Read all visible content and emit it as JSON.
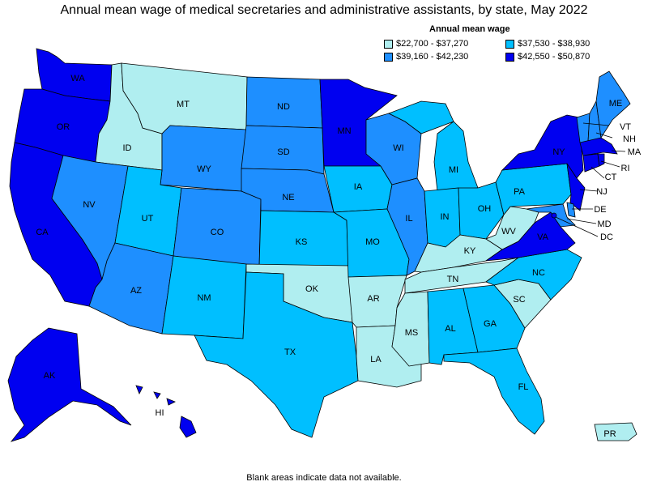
{
  "title": "Annual mean wage of medical secretaries and administrative assistants, by state, May 2022",
  "note": "Blank areas indicate data not available.",
  "legend": {
    "title": "Annual mean wage",
    "items": [
      {
        "range": "$22,700 - $37,270",
        "color": "#b0eef0"
      },
      {
        "range": "$37,530 - $38,930",
        "color": "#00bfff"
      },
      {
        "range": "$39,160 - $42,230",
        "color": "#1e8fff"
      },
      {
        "range": "$42,550 - $50,870",
        "color": "#0000f0"
      }
    ]
  },
  "colors": {
    "c1": "#b0eef0",
    "c2": "#00bfff",
    "c3": "#1e8fff",
    "c4": "#0000f0"
  },
  "states": [
    {
      "abbr": "WA",
      "cls": "c4"
    },
    {
      "abbr": "OR",
      "cls": "c4"
    },
    {
      "abbr": "CA",
      "cls": "c4"
    },
    {
      "abbr": "ID",
      "cls": "c1"
    },
    {
      "abbr": "NV",
      "cls": "c3"
    },
    {
      "abbr": "MT",
      "cls": "c1"
    },
    {
      "abbr": "WY",
      "cls": "c3"
    },
    {
      "abbr": "UT",
      "cls": "c2"
    },
    {
      "abbr": "AZ",
      "cls": "c3"
    },
    {
      "abbr": "CO",
      "cls": "c3"
    },
    {
      "abbr": "NM",
      "cls": "c2"
    },
    {
      "abbr": "ND",
      "cls": "c3"
    },
    {
      "abbr": "SD",
      "cls": "c3"
    },
    {
      "abbr": "NE",
      "cls": "c3"
    },
    {
      "abbr": "KS",
      "cls": "c2"
    },
    {
      "abbr": "OK",
      "cls": "c1"
    },
    {
      "abbr": "TX",
      "cls": "c2"
    },
    {
      "abbr": "MN",
      "cls": "c4"
    },
    {
      "abbr": "IA",
      "cls": "c2"
    },
    {
      "abbr": "MO",
      "cls": "c2"
    },
    {
      "abbr": "AR",
      "cls": "c1"
    },
    {
      "abbr": "LA",
      "cls": "c1"
    },
    {
      "abbr": "WI",
      "cls": "c3"
    },
    {
      "abbr": "IL",
      "cls": "c3"
    },
    {
      "abbr": "MI",
      "cls": "c2"
    },
    {
      "abbr": "IN",
      "cls": "c2"
    },
    {
      "abbr": "OH",
      "cls": "c2"
    },
    {
      "abbr": "KY",
      "cls": "c1"
    },
    {
      "abbr": "TN",
      "cls": "c1"
    },
    {
      "abbr": "MS",
      "cls": "c1"
    },
    {
      "abbr": "AL",
      "cls": "c2"
    },
    {
      "abbr": "GA",
      "cls": "c2"
    },
    {
      "abbr": "FL",
      "cls": "c2"
    },
    {
      "abbr": "SC",
      "cls": "c1"
    },
    {
      "abbr": "NC",
      "cls": "c2"
    },
    {
      "abbr": "VA",
      "cls": "c4"
    },
    {
      "abbr": "WV",
      "cls": "c1"
    },
    {
      "abbr": "PA",
      "cls": "c2"
    },
    {
      "abbr": "NY",
      "cls": "c4"
    },
    {
      "abbr": "VT",
      "cls": "c3"
    },
    {
      "abbr": "NH",
      "cls": "c3"
    },
    {
      "abbr": "ME",
      "cls": "c3"
    },
    {
      "abbr": "MA",
      "cls": "c4"
    },
    {
      "abbr": "RI",
      "cls": "c4"
    },
    {
      "abbr": "CT",
      "cls": "c4"
    },
    {
      "abbr": "NJ",
      "cls": "c4"
    },
    {
      "abbr": "DE",
      "cls": "c3"
    },
    {
      "abbr": "MD",
      "cls": "c3"
    },
    {
      "abbr": "DC",
      "cls": "c4"
    },
    {
      "abbr": "AK",
      "cls": "c4"
    },
    {
      "abbr": "HI",
      "cls": "c4"
    },
    {
      "abbr": "PR",
      "cls": "c1"
    }
  ]
}
